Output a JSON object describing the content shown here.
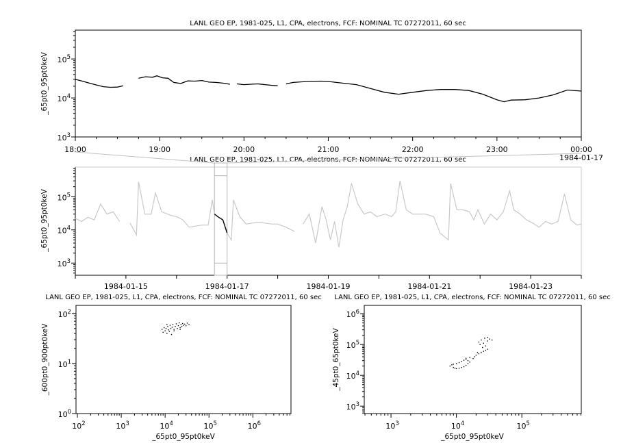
{
  "chart_data": [
    {
      "type": "line",
      "title": "LANL GEO EP, 1981-025, L1, CPA, electrons, FCF: NOMINAL TC 07272011, 60 sec",
      "ylabel": "_65pt0_95pt0keV",
      "xlabel": "",
      "x_scale": "time",
      "y_scale": "log",
      "xlim": [
        "1984-01-16T18:00",
        "1984-01-17T00:00"
      ],
      "ylim": [
        1000,
        550000
      ],
      "x_tick_labels": [
        "18:00",
        "19:00",
        "20:00",
        "21:00",
        "22:00",
        "23:00",
        "00:00"
      ],
      "x_tick_sublabel": "1984-01-17",
      "y_tick_labels": [
        {
          "base": "10",
          "exp": "3"
        },
        {
          "base": "10",
          "exp": "4"
        },
        {
          "base": "10",
          "exp": "5"
        }
      ],
      "color": "#000000",
      "points": [
        [
          "18:00",
          30000
        ],
        [
          "18:05",
          27000
        ],
        [
          "18:10",
          24000
        ],
        [
          "18:15",
          21500
        ],
        [
          "18:20",
          19500
        ],
        [
          "18:25",
          18800
        ],
        [
          "18:30",
          19000
        ],
        [
          "18:34",
          20500
        ],
        [
          "18:40",
          null
        ],
        [
          "18:45",
          32000
        ],
        [
          "18:50",
          35000
        ],
        [
          "18:55",
          34000
        ],
        [
          "18:58",
          37000
        ],
        [
          "19:02",
          33000
        ],
        [
          "19:06",
          32000
        ],
        [
          "19:10",
          25000
        ],
        [
          "19:15",
          23500
        ],
        [
          "19:20",
          27500
        ],
        [
          "19:25",
          27000
        ],
        [
          "19:30",
          28000
        ],
        [
          "19:35",
          25500
        ],
        [
          "19:40",
          25000
        ],
        [
          "19:45",
          24000
        ],
        [
          "19:50",
          22500
        ],
        [
          "19:52",
          null
        ],
        [
          "19:55",
          23000
        ],
        [
          "20:00",
          22000
        ],
        [
          "20:05",
          22500
        ],
        [
          "20:10",
          23000
        ],
        [
          "20:15",
          22000
        ],
        [
          "20:20",
          21000
        ],
        [
          "20:24",
          20500
        ],
        [
          "20:27",
          null
        ],
        [
          "20:30",
          23000
        ],
        [
          "20:35",
          25000
        ],
        [
          "20:45",
          26500
        ],
        [
          "20:55",
          27000
        ],
        [
          "21:00",
          26500
        ],
        [
          "21:10",
          24000
        ],
        [
          "21:20",
          22000
        ],
        [
          "21:30",
          17500
        ],
        [
          "21:40",
          14000
        ],
        [
          "21:50",
          12500
        ],
        [
          "22:00",
          14000
        ],
        [
          "22:10",
          15500
        ],
        [
          "22:20",
          16500
        ],
        [
          "22:30",
          16500
        ],
        [
          "22:40",
          15500
        ],
        [
          "22:50",
          12500
        ],
        [
          "23:00",
          9000
        ],
        [
          "23:05",
          8000
        ],
        [
          "23:10",
          8800
        ],
        [
          "23:20",
          9000
        ],
        [
          "23:30",
          10000
        ],
        [
          "23:40",
          12000
        ],
        [
          "23:50",
          16000
        ],
        [
          "00:00",
          15000
        ]
      ]
    },
    {
      "type": "line",
      "title": "LANL GEO EP, 1981-025, L1, CPA, electrons, FCF: NOMINAL TC 07272011, 60 sec",
      "ylabel": "_65pt0_95pt0keV",
      "xlabel": "",
      "x_scale": "time",
      "y_scale": "log",
      "xlim": [
        "1984-01-14T00:00",
        "1984-01-24T00:00"
      ],
      "ylim": [
        430,
        780000
      ],
      "x_tick_labels": [
        "1984-01-15",
        "1984-01-17",
        "1984-01-19",
        "1984-01-21",
        "1984-01-23"
      ],
      "y_tick_labels": [
        {
          "base": "10",
          "exp": "3"
        },
        {
          "base": "10",
          "exp": "4"
        },
        {
          "base": "10",
          "exp": "5"
        }
      ],
      "color": "#c8c8c8",
      "highlight_color": "#000000",
      "highlight_range": [
        "1984-01-16T18:00",
        "1984-01-17T00:00"
      ],
      "points": [
        [
          "1984-01-14T00:00",
          22000
        ],
        [
          "1984-01-14T03:00",
          18000
        ],
        [
          "1984-01-14T06:00",
          24000
        ],
        [
          "1984-01-14T09:00",
          20000
        ],
        [
          "1984-01-14T12:00",
          60000
        ],
        [
          "1984-01-14T15:00",
          30000
        ],
        [
          "1984-01-14T18:00",
          35000
        ],
        [
          "1984-01-14T21:00",
          18000
        ],
        [
          "1984-01-14T23:00",
          null
        ],
        [
          "1984-01-15T02:00",
          16000
        ],
        [
          "1984-01-15T05:00",
          7000
        ],
        [
          "1984-01-15T06:00",
          280000
        ],
        [
          "1984-01-15T09:00",
          30000
        ],
        [
          "1984-01-15T12:00",
          30000
        ],
        [
          "1984-01-15T14:00",
          130000
        ],
        [
          "1984-01-15T17:00",
          35000
        ],
        [
          "1984-01-15T21:00",
          28000
        ],
        [
          "1984-01-16T00:00",
          25000
        ],
        [
          "1984-01-16T03:00",
          20000
        ],
        [
          "1984-01-16T06:00",
          12000
        ],
        [
          "1984-01-16T09:00",
          13000
        ],
        [
          "1984-01-16T12:00",
          14000
        ],
        [
          "1984-01-16T15:00",
          14000
        ],
        [
          "1984-01-16T17:00",
          80000
        ],
        [
          "1984-01-16T18:00",
          30000
        ],
        [
          "1984-01-16T20:00",
          24000
        ],
        [
          "1984-01-16T22:00",
          20000
        ],
        [
          "1984-01-17T00:00",
          8000
        ],
        [
          "1984-01-17T02:00",
          5000
        ],
        [
          "1984-01-17T03:00",
          80000
        ],
        [
          "1984-01-17T06:00",
          25000
        ],
        [
          "1984-01-17T09:00",
          15000
        ],
        [
          "1984-01-17T12:00",
          16000
        ],
        [
          "1984-01-17T15:00",
          17000
        ],
        [
          "1984-01-17T18:00",
          16000
        ],
        [
          "1984-01-17T21:00",
          15000
        ],
        [
          "1984-01-18T00:00",
          15000
        ],
        [
          "1984-01-18T04:00",
          12000
        ],
        [
          "1984-01-18T08:00",
          9000
        ],
        [
          "1984-01-18T09:30",
          null
        ],
        [
          "1984-01-18T12:00",
          15000
        ],
        [
          "1984-01-18T15:00",
          30000
        ],
        [
          "1984-01-18T18:00",
          4000
        ],
        [
          "1984-01-18T21:00",
          50000
        ],
        [
          "1984-01-18T23:00",
          20000
        ],
        [
          "1984-01-19T01:00",
          5000
        ],
        [
          "1984-01-19T03:00",
          18000
        ],
        [
          "1984-01-19T05:00",
          3000
        ],
        [
          "1984-01-19T07:00",
          20000
        ],
        [
          "1984-01-19T09:00",
          50000
        ],
        [
          "1984-01-19T11:00",
          250000
        ],
        [
          "1984-01-19T14:00",
          60000
        ],
        [
          "1984-01-19T17:00",
          30000
        ],
        [
          "1984-01-19T20:00",
          35000
        ],
        [
          "1984-01-19T23:00",
          25000
        ],
        [
          "1984-01-20T03:00",
          30000
        ],
        [
          "1984-01-20T06:00",
          25000
        ],
        [
          "1984-01-20T08:00",
          35000
        ],
        [
          "1984-01-20T10:00",
          300000
        ],
        [
          "1984-01-20T13:00",
          40000
        ],
        [
          "1984-01-20T16:00",
          30000
        ],
        [
          "1984-01-20T19:00",
          30000
        ],
        [
          "1984-01-20T22:00",
          30000
        ],
        [
          "1984-01-21T02:00",
          25000
        ],
        [
          "1984-01-21T05:00",
          8000
        ],
        [
          "1984-01-21T09:00",
          5000
        ],
        [
          "1984-01-21T10:00",
          250000
        ],
        [
          "1984-01-21T13:00",
          40000
        ],
        [
          "1984-01-21T16:00",
          40000
        ],
        [
          "1984-01-21T19:00",
          35000
        ],
        [
          "1984-01-21T21:00",
          20000
        ],
        [
          "1984-01-21T23:00",
          40000
        ],
        [
          "1984-01-22T02:00",
          15000
        ],
        [
          "1984-01-22T05:00",
          30000
        ],
        [
          "1984-01-22T08:00",
          20000
        ],
        [
          "1984-01-22T11:00",
          35000
        ],
        [
          "1984-01-22T14:00",
          150000
        ],
        [
          "1984-01-22T16:00",
          40000
        ],
        [
          "1984-01-22T19:00",
          30000
        ],
        [
          "1984-01-22T22:00",
          20000
        ],
        [
          "1984-01-23T01:00",
          16000
        ],
        [
          "1984-01-23T04:00",
          12000
        ],
        [
          "1984-01-23T07:00",
          18000
        ],
        [
          "1984-01-23T10:00",
          15000
        ],
        [
          "1984-01-23T13:00",
          18000
        ],
        [
          "1984-01-23T16:00",
          120000
        ],
        [
          "1984-01-23T19:00",
          20000
        ],
        [
          "1984-01-23T22:00",
          14000
        ],
        [
          "1984-01-24T00:00",
          15000
        ]
      ]
    },
    {
      "type": "scatter",
      "title": "LANL GEO EP, 1981-025, L1, CPA, electrons, FCF: NOMINAL TC 07272011, 60 sec",
      "xlabel": "_65pt0_95pt0keV",
      "ylabel": "_600pt0_900pt0keV",
      "x_scale": "log",
      "y_scale": "log",
      "xlim": [
        93,
        7400000
      ],
      "ylim": [
        1,
        145
      ],
      "x_tick_labels": [
        {
          "base": "10",
          "exp": "2"
        },
        {
          "base": "10",
          "exp": "3"
        },
        {
          "base": "10",
          "exp": "4"
        },
        {
          "base": "10",
          "exp": "5"
        },
        {
          "base": "10",
          "exp": "6"
        }
      ],
      "y_tick_labels": [
        {
          "base": "10",
          "exp": "0"
        },
        {
          "base": "10",
          "exp": "1"
        },
        {
          "base": "10",
          "exp": "2"
        }
      ],
      "color": "#000000",
      "points": [
        [
          8500,
          48
        ],
        [
          9000,
          42
        ],
        [
          9500,
          52
        ],
        [
          10000,
          45
        ],
        [
          10500,
          50
        ],
        [
          11000,
          40
        ],
        [
          11500,
          55
        ],
        [
          12000,
          47
        ],
        [
          12500,
          44
        ],
        [
          13000,
          58
        ],
        [
          13500,
          50
        ],
        [
          14000,
          38
        ],
        [
          14500,
          53
        ],
        [
          15000,
          60
        ],
        [
          16000,
          48
        ],
        [
          17000,
          55
        ],
        [
          18000,
          62
        ],
        [
          19000,
          50
        ],
        [
          20000,
          57
        ],
        [
          21000,
          65
        ],
        [
          22000,
          52
        ],
        [
          23000,
          60
        ],
        [
          24000,
          55
        ],
        [
          25000,
          63
        ],
        [
          26000,
          58
        ],
        [
          28000,
          61
        ],
        [
          30000,
          57
        ],
        [
          32000,
          64
        ],
        [
          35000,
          60
        ],
        [
          11000,
          60
        ],
        [
          16000,
          45
        ],
        [
          22000,
          48
        ]
      ]
    },
    {
      "type": "scatter",
      "title": "LANL GEO EP, 1981-025, L1, CPA, electrons, FCF: NOMINAL TC 07272011, 60 sec",
      "xlabel": "_65pt0_95pt0keV",
      "ylabel": "_45pt0_65pt0keV",
      "x_scale": "log",
      "y_scale": "log",
      "xlim": [
        390,
        810000
      ],
      "ylim": [
        575,
        1860000
      ],
      "x_tick_labels": [
        {
          "base": "10",
          "exp": "3"
        },
        {
          "base": "10",
          "exp": "4"
        },
        {
          "base": "10",
          "exp": "5"
        }
      ],
      "y_tick_labels": [
        {
          "base": "10",
          "exp": "3"
        },
        {
          "base": "10",
          "exp": "4"
        },
        {
          "base": "10",
          "exp": "5"
        },
        {
          "base": "10",
          "exp": "6"
        }
      ],
      "color": "#000000",
      "points": [
        [
          8000,
          20000
        ],
        [
          8500,
          22000
        ],
        [
          9000,
          18000
        ],
        [
          9500,
          17000
        ],
        [
          10000,
          16500
        ],
        [
          11000,
          17000
        ],
        [
          12000,
          18000
        ],
        [
          13000,
          19000
        ],
        [
          14000,
          21000
        ],
        [
          15000,
          24000
        ],
        [
          16000,
          27000
        ],
        [
          15000,
          30000
        ],
        [
          14000,
          33000
        ],
        [
          13000,
          31000
        ],
        [
          12000,
          28000
        ],
        [
          11000,
          26000
        ],
        [
          10000,
          24000
        ],
        [
          9000,
          23000
        ],
        [
          14000,
          36000
        ],
        [
          16000,
          38000
        ],
        [
          18000,
          35000
        ],
        [
          20000,
          45000
        ],
        [
          22000,
          50000
        ],
        [
          24000,
          55000
        ],
        [
          26000,
          60000
        ],
        [
          28000,
          65000
        ],
        [
          25000,
          80000
        ],
        [
          23000,
          100000
        ],
        [
          22000,
          120000
        ],
        [
          24000,
          140000
        ],
        [
          27000,
          160000
        ],
        [
          30000,
          170000
        ],
        [
          32000,
          150000
        ],
        [
          35000,
          140000
        ],
        [
          30000,
          130000
        ],
        [
          26000,
          110000
        ],
        [
          28000,
          90000
        ],
        [
          30000,
          70000
        ],
        [
          21000,
          55000
        ],
        [
          19000,
          40000
        ]
      ]
    }
  ]
}
